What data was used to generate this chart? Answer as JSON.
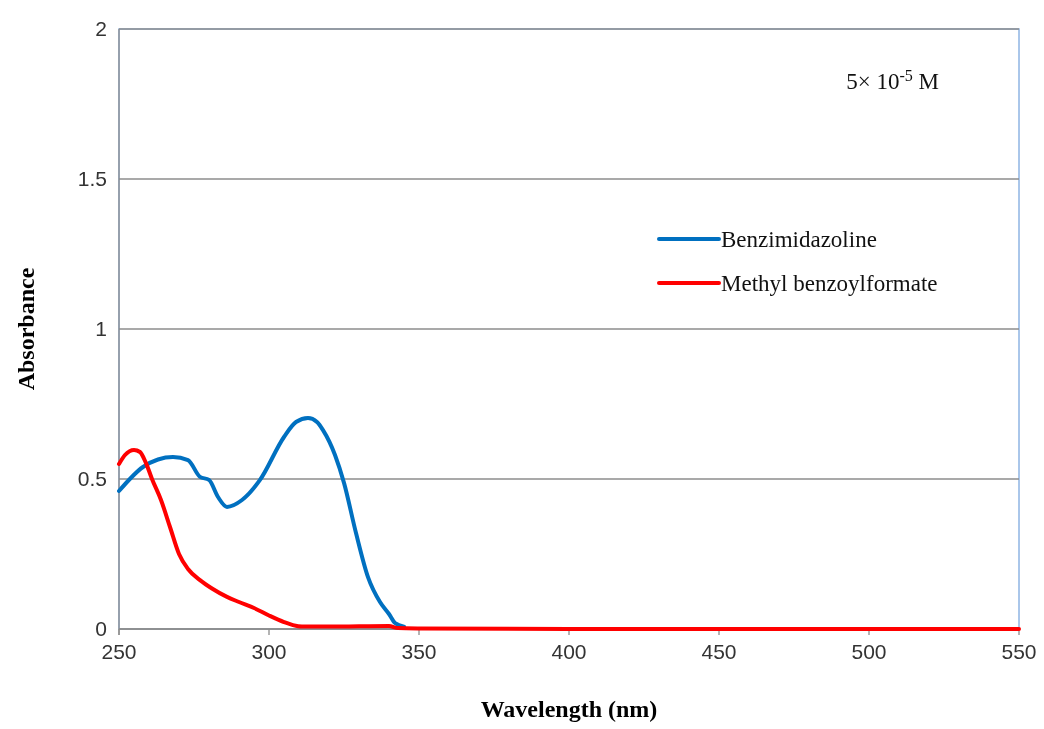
{
  "chart_data": {
    "type": "line",
    "xlabel": "Wavelength (nm)",
    "ylabel": "Absorbance",
    "xlim": [
      250,
      550
    ],
    "xticks": [
      250,
      300,
      350,
      400,
      450,
      500,
      550
    ],
    "ylim": [
      0,
      2
    ],
    "yticks": [
      0,
      0.5,
      1,
      1.5,
      2
    ],
    "grid": "y",
    "legend": "right",
    "line_style": "solid",
    "marker": "none",
    "annotations": [
      "5× 10$^{-5}$ M"
    ],
    "series": [
      {
        "name": "Benzimidazoline",
        "color": "#0070c0",
        "x": [
          250,
          258,
          263,
          268,
          273,
          277,
          280,
          283,
          286,
          291,
          297,
          305,
          309,
          313,
          316,
          318,
          322,
          325,
          329,
          333,
          337,
          340,
          342,
          345
        ],
        "values": [
          0.46,
          0.54,
          0.565,
          0.573,
          0.563,
          0.507,
          0.497,
          0.44,
          0.407,
          0.43,
          0.497,
          0.64,
          0.69,
          0.703,
          0.69,
          0.663,
          0.58,
          0.487,
          0.32,
          0.173,
          0.09,
          0.05,
          0.02,
          0.008
        ]
      },
      {
        "name": "Methyl benzoylformate",
        "color": "#ff0000",
        "x": [
          250,
          252,
          255,
          257,
          259,
          261,
          264,
          267,
          270,
          273,
          277,
          281,
          286,
          290,
          295,
          300,
          305,
          308,
          311,
          315,
          320,
          330,
          340,
          343,
          350,
          400,
          450,
          500,
          550
        ],
        "values": [
          0.55,
          0.58,
          0.597,
          0.59,
          0.553,
          0.5,
          0.43,
          0.34,
          0.25,
          0.2,
          0.163,
          0.135,
          0.107,
          0.09,
          0.07,
          0.045,
          0.023,
          0.013,
          0.008,
          0.008,
          0.008,
          0.009,
          0.01,
          0.003,
          0.002,
          0,
          0,
          0,
          0
        ]
      }
    ]
  }
}
